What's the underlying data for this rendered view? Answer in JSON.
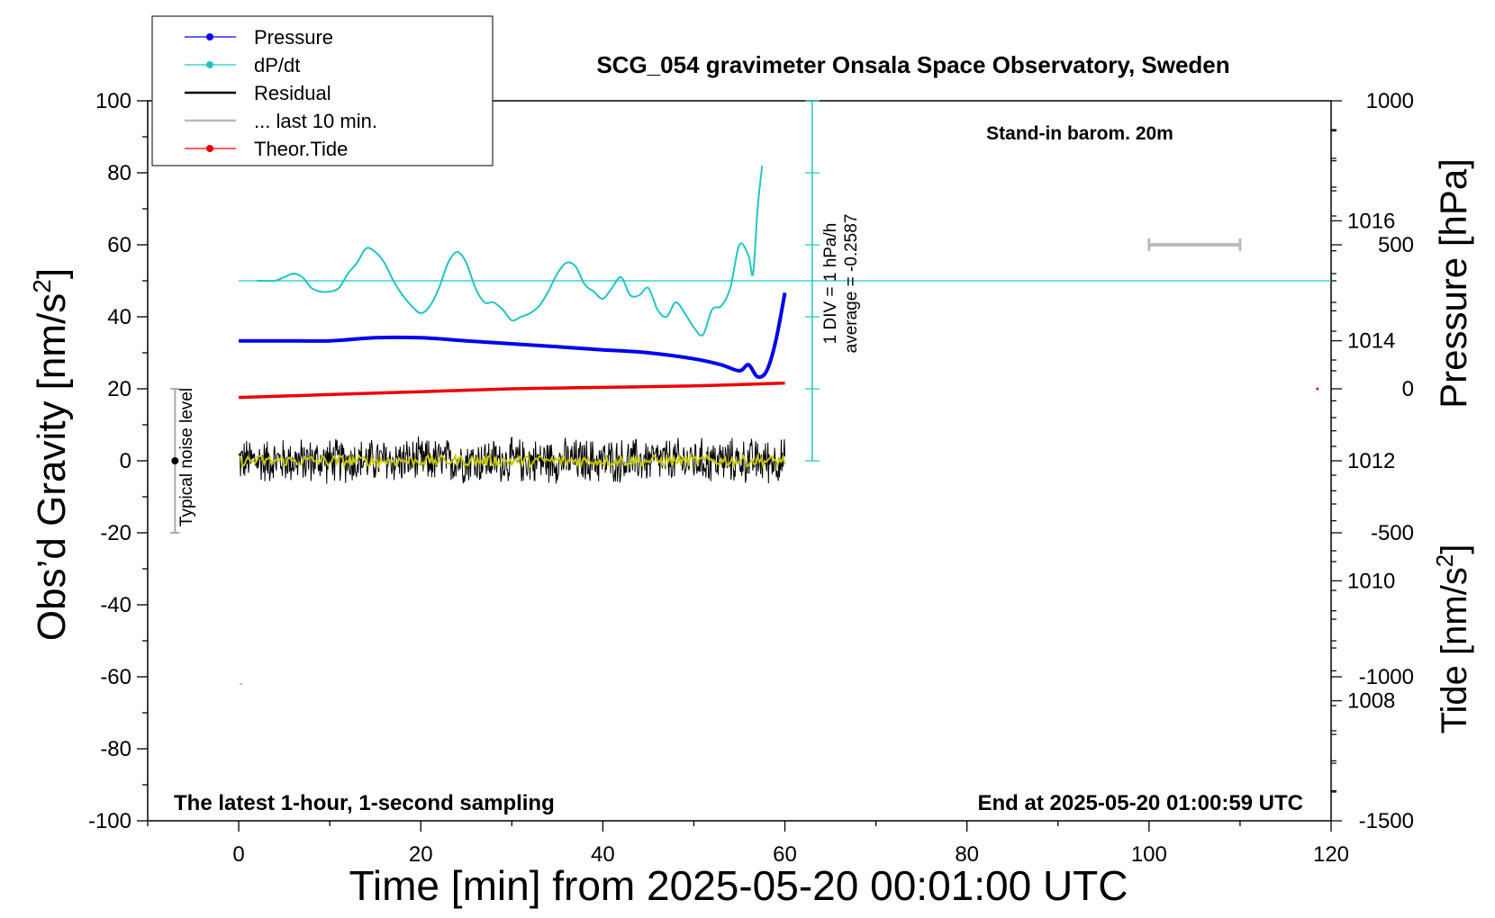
{
  "chart_data": {
    "type": "line",
    "title": "SCG_054 gravimeter Onsala Space Observatory, Sweden",
    "xlabel": "Time [min] from 2025-05-20 00:01:00 UTC",
    "ylabel_left": "Obs’d Gravity [nm/s",
    "ylabel_left_sup": "2",
    "ylabel_left_tail": "]",
    "ylabel_right_pressure": "Pressure [hPa]",
    "ylabel_right_tide": "Tide [nm/s",
    "ylabel_right_tide_sup": "2",
    "ylabel_right_tide_tail": "]",
    "xlim": [
      -10,
      120
    ],
    "ylim_gravity": [
      -100,
      100
    ],
    "x_ticks": [
      "0",
      "20",
      "40",
      "60",
      "80",
      "100",
      "120"
    ],
    "y_ticks_gravity": [
      "100",
      "80",
      "60",
      "40",
      "20",
      "0",
      "-20",
      "-40",
      "-60",
      "-80",
      "-100"
    ],
    "pressure_ticks": [
      "1016",
      "1014",
      "1012",
      "1010",
      "1008"
    ],
    "tide_ticks": [
      "1000",
      "500",
      "0",
      "-500",
      "-1000",
      "-1500"
    ],
    "pressure_ylim": [
      1006.0,
      1018.0
    ],
    "tide_ylim": [
      -1500,
      1000
    ],
    "legend": [
      {
        "label": "Pressure",
        "color": "#0000ee",
        "marker": "dot"
      },
      {
        "label": "dP/dt",
        "color": "#22c4c4",
        "marker": "dot"
      },
      {
        "label": "Residual",
        "color": "#000000",
        "marker": "line"
      },
      {
        "label": "... last 10 min.",
        "color": "#bbbbbb",
        "marker": "line"
      },
      {
        "label": "Theor.Tide",
        "color": "#ee0000",
        "marker": "dot"
      }
    ],
    "annotations": {
      "barometer": "Stand-in barom. 20m",
      "bottom_left": "The latest 1-hour, 1-second sampling",
      "bottom_right": "End at 2025-05-20 01:00:59 UTC",
      "noise": "Typical noise level",
      "div_line1": "1 DIV = 1 hPa/h",
      "div_line2": "average = -0.2587"
    },
    "series": [
      {
        "name": "Pressure",
        "unit": "hPa",
        "color": "#0000ee",
        "x": [
          0,
          5,
          10,
          15,
          20,
          25,
          30,
          35,
          40,
          45,
          50,
          53,
          55,
          56,
          57,
          58,
          59,
          60
        ],
        "values": [
          1014.0,
          1014.0,
          1014.0,
          1014.05,
          1014.05,
          1014.0,
          1013.95,
          1013.9,
          1013.85,
          1013.8,
          1013.7,
          1013.6,
          1013.5,
          1013.6,
          1013.4,
          1013.5,
          1014.0,
          1014.8
        ]
      },
      {
        "name": "dP/dt",
        "unit": "gravity-axis units (1 DIV = 1 hPa/h)",
        "color": "#22c4c4",
        "x": [
          2,
          3,
          4,
          5,
          6,
          7,
          8,
          9,
          10,
          11,
          12,
          13,
          14,
          15,
          16,
          17,
          18,
          19,
          20,
          21,
          22,
          23,
          24,
          25,
          26,
          27,
          28,
          29,
          30,
          31,
          32,
          33,
          34,
          35,
          36,
          37,
          38,
          39,
          40,
          41,
          42,
          43,
          44,
          45,
          46,
          47,
          48,
          49,
          50,
          51,
          52,
          53,
          54,
          55,
          56,
          56.5,
          57,
          57.5
        ],
        "values": [
          50,
          50,
          50,
          51,
          52,
          51,
          48,
          47,
          47,
          48,
          52,
          55,
          59,
          58,
          55,
          50,
          46,
          43,
          41,
          43,
          48,
          55,
          58,
          55,
          48,
          44,
          44,
          42,
          39,
          40,
          41,
          43,
          47,
          52,
          55,
          54,
          49,
          47,
          45,
          48,
          51,
          46,
          46,
          48,
          42,
          40,
          44,
          41,
          37,
          35,
          42,
          43,
          48,
          60,
          57,
          52,
          70,
          82
        ]
      },
      {
        "name": "Residual",
        "unit": "nm/s2",
        "color": "#000000",
        "x_range": [
          0,
          60
        ],
        "mean": 0,
        "amplitude": 7
      },
      {
        "name": "Smoothed residual",
        "unit": "nm/s2",
        "color": "#c8c800",
        "x_range": [
          0,
          60
        ],
        "mean": 0,
        "amplitude": 1.5
      },
      {
        "name": "Theor.Tide",
        "unit": "nm/s2",
        "color": "#ee0000",
        "x": [
          0,
          10,
          20,
          30,
          40,
          50,
          60
        ],
        "values": [
          -30,
          -20,
          -10,
          0,
          5,
          10,
          20
        ]
      }
    ],
    "dpdt_reference_level": 50,
    "dpdt_scale_bar": {
      "x": 63,
      "from": 0,
      "to": 100
    },
    "noise_bar": {
      "x": -7,
      "from": -20,
      "to": 20,
      "center": 0
    },
    "last10_bar": {
      "from": 100,
      "to": 110,
      "tide_value": 500
    }
  }
}
